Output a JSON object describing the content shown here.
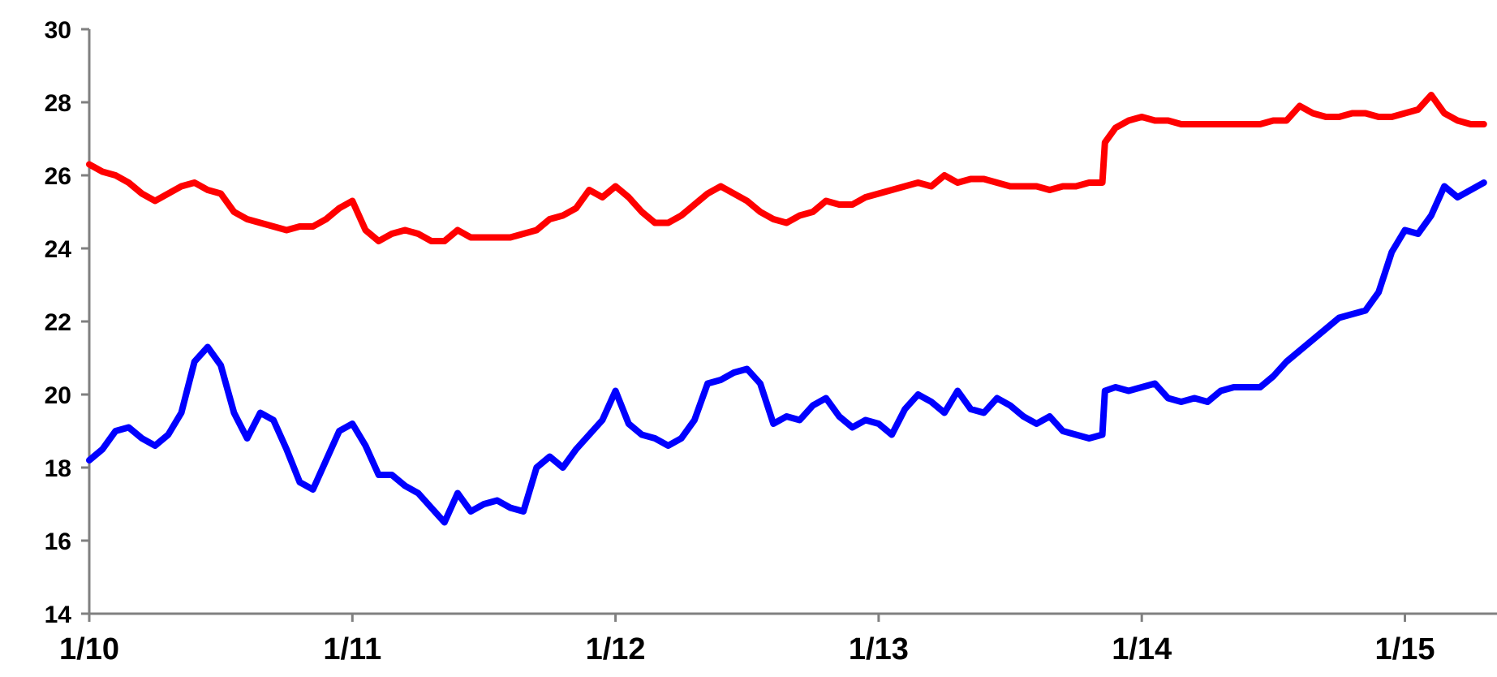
{
  "chart_data": {
    "type": "line",
    "title": "",
    "xlabel": "",
    "ylabel": "",
    "ylim": [
      14,
      30
    ],
    "yticks": [
      30,
      28,
      26,
      24,
      22,
      20,
      18,
      16,
      14
    ],
    "xticks": [
      "1/10",
      "1/11",
      "1/12",
      "1/13",
      "1/14",
      "1/15"
    ],
    "xlim": [
      2010.0,
      2015.35
    ],
    "grid": false,
    "legend": "none",
    "series": [
      {
        "color": "#ff0000",
        "x": [
          2010.0,
          2010.05,
          2010.1,
          2010.15,
          2010.2,
          2010.25,
          2010.3,
          2010.35,
          2010.4,
          2010.45,
          2010.5,
          2010.55,
          2010.6,
          2010.65,
          2010.7,
          2010.75,
          2010.8,
          2010.85,
          2010.9,
          2010.95,
          2011.0,
          2011.05,
          2011.1,
          2011.15,
          2011.2,
          2011.25,
          2011.3,
          2011.35,
          2011.4,
          2011.45,
          2011.5,
          2011.55,
          2011.6,
          2011.65,
          2011.7,
          2011.75,
          2011.8,
          2011.85,
          2011.9,
          2011.95,
          2012.0,
          2012.05,
          2012.1,
          2012.15,
          2012.2,
          2012.25,
          2012.3,
          2012.35,
          2012.4,
          2012.45,
          2012.5,
          2012.55,
          2012.6,
          2012.65,
          2012.7,
          2012.75,
          2012.8,
          2012.85,
          2012.9,
          2012.95,
          2013.0,
          2013.05,
          2013.1,
          2013.15,
          2013.2,
          2013.25,
          2013.3,
          2013.35,
          2013.4,
          2013.45,
          2013.5,
          2013.55,
          2013.6,
          2013.65,
          2013.7,
          2013.75,
          2013.8,
          2013.85,
          2013.86,
          2013.9,
          2013.95,
          2014.0,
          2014.05,
          2014.1,
          2014.15,
          2014.2,
          2014.25,
          2014.3,
          2014.35,
          2014.4,
          2014.45,
          2014.5,
          2014.55,
          2014.6,
          2014.65,
          2014.7,
          2014.75,
          2014.8,
          2014.85,
          2014.9,
          2014.95,
          2015.0,
          2015.05,
          2015.1,
          2015.15,
          2015.2,
          2015.25,
          2015.3
        ],
        "y": [
          26.3,
          26.1,
          26.0,
          25.8,
          25.5,
          25.3,
          25.5,
          25.7,
          25.8,
          25.6,
          25.5,
          25.0,
          24.8,
          24.7,
          24.6,
          24.5,
          24.6,
          24.6,
          24.8,
          25.1,
          25.3,
          24.5,
          24.2,
          24.4,
          24.5,
          24.4,
          24.2,
          24.2,
          24.5,
          24.3,
          24.3,
          24.3,
          24.3,
          24.4,
          24.5,
          24.8,
          24.9,
          25.1,
          25.6,
          25.4,
          25.7,
          25.4,
          25.0,
          24.7,
          24.7,
          24.9,
          25.2,
          25.5,
          25.7,
          25.5,
          25.3,
          25.0,
          24.8,
          24.7,
          24.9,
          25.0,
          25.3,
          25.2,
          25.2,
          25.4,
          25.5,
          25.6,
          25.7,
          25.8,
          25.7,
          26.0,
          25.8,
          25.9,
          25.9,
          25.8,
          25.7,
          25.7,
          25.7,
          25.6,
          25.7,
          25.7,
          25.8,
          25.8,
          26.9,
          27.3,
          27.5,
          27.6,
          27.5,
          27.5,
          27.4,
          27.4,
          27.4,
          27.4,
          27.4,
          27.4,
          27.4,
          27.5,
          27.5,
          27.9,
          27.7,
          27.6,
          27.6,
          27.7,
          27.7,
          27.6,
          27.6,
          27.7,
          27.8,
          28.2,
          27.7,
          27.5,
          27.4,
          27.4
        ]
      },
      {
        "color": "#0000ff",
        "x": [
          2010.0,
          2010.05,
          2010.1,
          2010.15,
          2010.2,
          2010.25,
          2010.3,
          2010.35,
          2010.4,
          2010.45,
          2010.5,
          2010.55,
          2010.6,
          2010.65,
          2010.7,
          2010.75,
          2010.8,
          2010.85,
          2010.9,
          2010.95,
          2011.0,
          2011.05,
          2011.1,
          2011.15,
          2011.2,
          2011.25,
          2011.3,
          2011.35,
          2011.4,
          2011.45,
          2011.5,
          2011.55,
          2011.6,
          2011.65,
          2011.7,
          2011.75,
          2011.8,
          2011.85,
          2011.9,
          2011.95,
          2012.0,
          2012.05,
          2012.1,
          2012.15,
          2012.2,
          2012.25,
          2012.3,
          2012.35,
          2012.4,
          2012.45,
          2012.5,
          2012.55,
          2012.6,
          2012.65,
          2012.7,
          2012.75,
          2012.8,
          2012.85,
          2012.9,
          2012.95,
          2013.0,
          2013.05,
          2013.1,
          2013.15,
          2013.2,
          2013.25,
          2013.3,
          2013.35,
          2013.4,
          2013.45,
          2013.5,
          2013.55,
          2013.6,
          2013.65,
          2013.7,
          2013.75,
          2013.8,
          2013.85,
          2013.86,
          2013.9,
          2013.95,
          2014.0,
          2014.05,
          2014.1,
          2014.15,
          2014.2,
          2014.25,
          2014.3,
          2014.35,
          2014.4,
          2014.45,
          2014.5,
          2014.55,
          2014.6,
          2014.65,
          2014.7,
          2014.75,
          2014.8,
          2014.85,
          2014.9,
          2014.95,
          2015.0,
          2015.05,
          2015.1,
          2015.15,
          2015.2,
          2015.25,
          2015.3
        ],
        "y": [
          18.2,
          18.5,
          19.0,
          19.1,
          18.8,
          18.6,
          18.9,
          19.5,
          20.9,
          21.3,
          20.8,
          19.5,
          18.8,
          19.5,
          19.3,
          18.5,
          17.6,
          17.4,
          18.2,
          19.0,
          19.2,
          18.6,
          17.8,
          17.8,
          17.5,
          17.3,
          16.9,
          16.5,
          17.3,
          16.8,
          17.0,
          17.1,
          16.9,
          16.8,
          18.0,
          18.3,
          18.0,
          18.5,
          18.9,
          19.3,
          20.1,
          19.2,
          18.9,
          18.8,
          18.6,
          18.8,
          19.3,
          20.3,
          20.4,
          20.6,
          20.7,
          20.3,
          19.2,
          19.4,
          19.3,
          19.7,
          19.9,
          19.4,
          19.1,
          19.3,
          19.2,
          18.9,
          19.6,
          20.0,
          19.8,
          19.5,
          20.1,
          19.6,
          19.5,
          19.9,
          19.7,
          19.4,
          19.2,
          19.4,
          19.0,
          18.9,
          18.8,
          18.9,
          20.1,
          20.2,
          20.1,
          20.2,
          20.3,
          19.9,
          19.8,
          19.9,
          19.8,
          20.1,
          20.2,
          20.2,
          20.2,
          20.5,
          20.9,
          21.2,
          21.5,
          21.8,
          22.1,
          22.2,
          22.3,
          22.8,
          23.9,
          24.5,
          24.4,
          24.9,
          25.7,
          25.4,
          25.6,
          25.8
        ]
      }
    ]
  }
}
